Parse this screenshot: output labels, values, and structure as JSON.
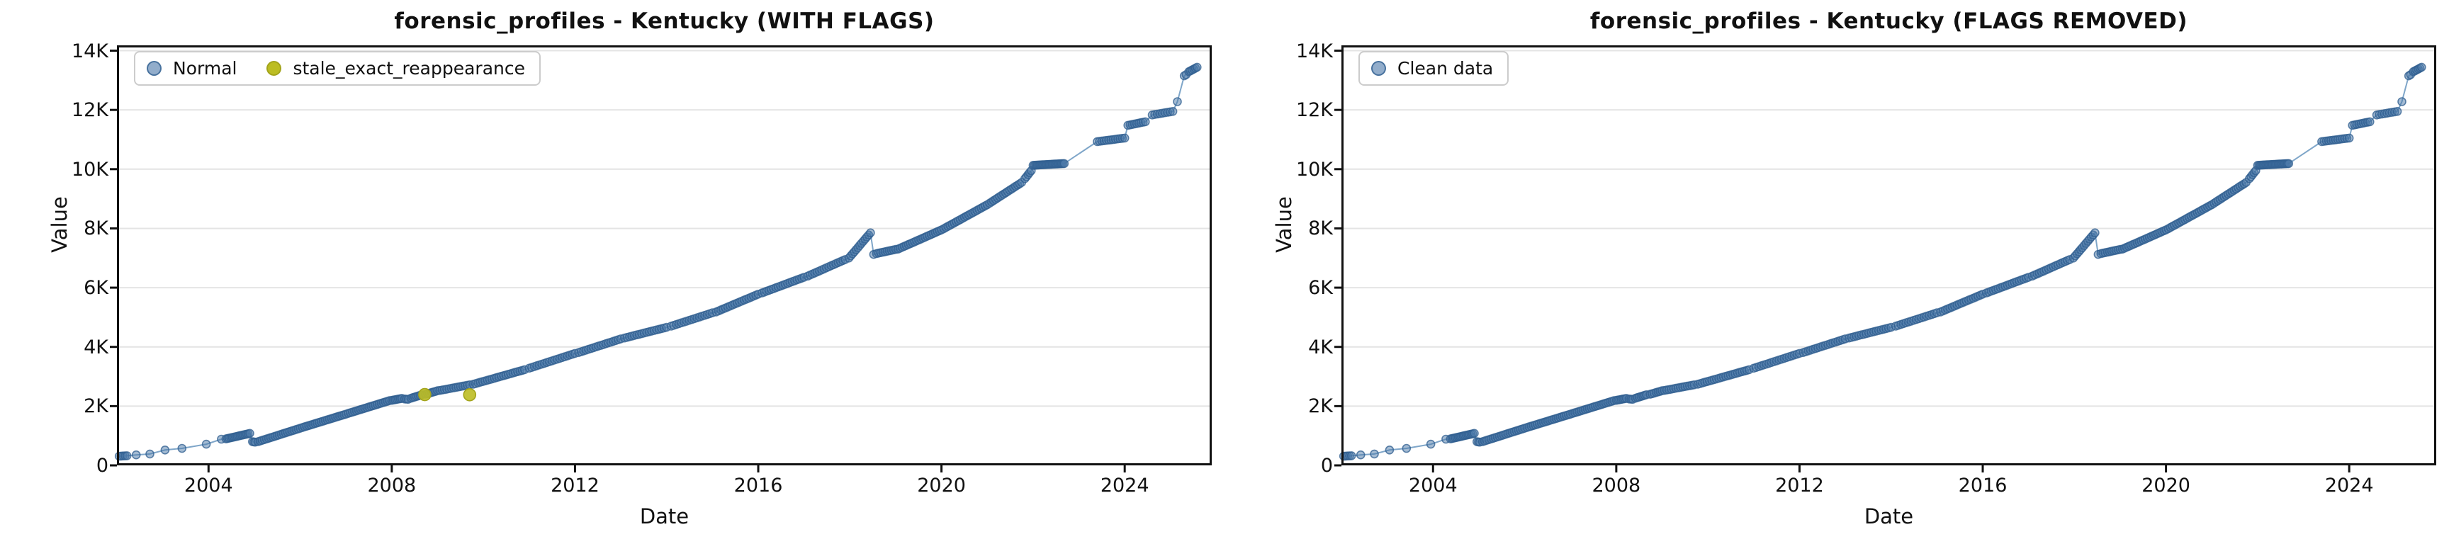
{
  "figure": {
    "background": "#ffffff",
    "panels": 2
  },
  "colors": {
    "normal_fill": "#4a77a8",
    "normal_edge": "#2f5d8f",
    "trend_line": "#7fa6c9",
    "flag_fill": "#bcbd22",
    "flag_edge": "#a3a41b",
    "grid": "#e4e4e4",
    "spine": "#111111",
    "text": "#111111",
    "legend_border": "#cccccc"
  },
  "chart_data": [
    {
      "type": "scatter-line",
      "title": "forensic_profiles - Kentucky (WITH FLAGS)",
      "xlabel": "Date",
      "ylabel": "Value",
      "legend_location": "upper left",
      "grid": "horizontal only",
      "axes": {
        "xlim": [
          2002.0,
          2025.9
        ],
        "ylim": [
          0,
          14180
        ],
        "xticks": [
          {
            "v": 2004,
            "label": "2004"
          },
          {
            "v": 2008,
            "label": "2008"
          },
          {
            "v": 2012,
            "label": "2012"
          },
          {
            "v": 2016,
            "label": "2016"
          },
          {
            "v": 2020,
            "label": "2020"
          },
          {
            "v": 2024,
            "label": "2024"
          }
        ],
        "yticks": [
          {
            "v": 0,
            "label": "0"
          },
          {
            "v": 2000,
            "label": "2K"
          },
          {
            "v": 4000,
            "label": "4K"
          },
          {
            "v": 6000,
            "label": "6K"
          },
          {
            "v": 8000,
            "label": "8K"
          },
          {
            "v": 10000,
            "label": "10K"
          },
          {
            "v": 12000,
            "label": "12K"
          },
          {
            "v": 14000,
            "label": "14K"
          }
        ]
      },
      "series": [
        {
          "name": "Normal",
          "marker_radius": 5.5,
          "note_segments_format": "[x_start_year, y_start, x_end_year, y_end, x_step_years]; step 0 = single point; line connects all points in order",
          "segments": [
            [
              2002.05,
              310,
              2002.22,
              325,
              0.04
            ],
            [
              2002.42,
              355,
              2002.42,
              355,
              0
            ],
            [
              2002.72,
              385,
              2002.72,
              385,
              0
            ],
            [
              2003.05,
              520,
              2003.05,
              520,
              0
            ],
            [
              2003.42,
              575,
              2003.42,
              575,
              0
            ],
            [
              2003.95,
              715,
              2003.95,
              715,
              0
            ],
            [
              2004.28,
              885,
              2004.28,
              885,
              0
            ],
            [
              2004.38,
              895,
              2004.9,
              1080,
              0.035
            ],
            [
              2004.96,
              800,
              2005.02,
              785,
              0.03
            ],
            [
              2005.08,
              800,
              2006.0,
              1255,
              0.045
            ],
            [
              2006.05,
              1280,
              2007.0,
              1730,
              0.045
            ],
            [
              2007.05,
              1755,
              2007.95,
              2185,
              0.045
            ],
            [
              2008.0,
              2195,
              2008.22,
              2262,
              0.04
            ],
            [
              2008.28,
              2240,
              2008.36,
              2232,
              0.04
            ],
            [
              2008.42,
              2268,
              2008.66,
              2385,
              0.04
            ],
            [
              2008.74,
              2400,
              2009.0,
              2520,
              0.045
            ],
            [
              2009.05,
              2530,
              2009.7,
              2720,
              0.05
            ],
            [
              2009.78,
              2740,
              2010.9,
              3230,
              0.05
            ],
            [
              2011.0,
              3280,
              2012.0,
              3780,
              0.055
            ],
            [
              2012.08,
              3810,
              2013.0,
              4270,
              0.055
            ],
            [
              2013.08,
              4300,
              2014.0,
              4660,
              0.055
            ],
            [
              2014.1,
              4700,
              2015.0,
              5150,
              0.055
            ],
            [
              2015.08,
              5180,
              2016.0,
              5780,
              0.05
            ],
            [
              2016.08,
              5820,
              2017.0,
              6350,
              0.05
            ],
            [
              2017.08,
              6390,
              2017.9,
              6950,
              0.05
            ],
            [
              2017.98,
              7000,
              2018.45,
              7850,
              0.04
            ],
            [
              2018.52,
              7120,
              2018.52,
              7120,
              0
            ],
            [
              2018.58,
              7150,
              2019.0,
              7290,
              0.045
            ],
            [
              2019.05,
              7300,
              2020.0,
              7950,
              0.045
            ],
            [
              2020.05,
              7990,
              2021.0,
              8800,
              0.045
            ],
            [
              2021.05,
              8850,
              2021.75,
              9550,
              0.045
            ],
            [
              2021.82,
              9680,
              2021.96,
              9950,
              0.035
            ],
            [
              2022.0,
              10130,
              2022.68,
              10190,
              0.03
            ],
            [
              2023.4,
              10930,
              2024.0,
              11050,
              0.05
            ],
            [
              2024.07,
              11480,
              2024.45,
              11600,
              0.05
            ],
            [
              2024.6,
              11830,
              2025.05,
              11950,
              0.055
            ],
            [
              2025.15,
              12280,
              2025.15,
              12280,
              0
            ],
            [
              2025.3,
              13150,
              2025.34,
              13190,
              0.04
            ],
            [
              2025.4,
              13290,
              2025.58,
              13440,
              0.035
            ]
          ]
        },
        {
          "name": "stale_exact_reappearance",
          "marker_radius": 8.5,
          "points": [
            [
              2008.72,
              2390
            ],
            [
              2009.7,
              2385
            ]
          ]
        }
      ]
    },
    {
      "type": "scatter-line",
      "title": "forensic_profiles - Kentucky (FLAGS REMOVED)",
      "xlabel": "Date",
      "ylabel": "Value",
      "legend_location": "upper left",
      "grid": "horizontal only",
      "axes": {
        "xlim": [
          2002.0,
          2025.9
        ],
        "ylim": [
          0,
          14180
        ],
        "xticks": [
          {
            "v": 2004,
            "label": "2004"
          },
          {
            "v": 2008,
            "label": "2008"
          },
          {
            "v": 2012,
            "label": "2012"
          },
          {
            "v": 2016,
            "label": "2016"
          },
          {
            "v": 2020,
            "label": "2020"
          },
          {
            "v": 2024,
            "label": "2024"
          }
        ],
        "yticks": [
          {
            "v": 0,
            "label": "0"
          },
          {
            "v": 2000,
            "label": "2K"
          },
          {
            "v": 4000,
            "label": "4K"
          },
          {
            "v": 6000,
            "label": "6K"
          },
          {
            "v": 8000,
            "label": "8K"
          },
          {
            "v": 10000,
            "label": "10K"
          },
          {
            "v": 12000,
            "label": "12K"
          },
          {
            "v": 14000,
            "label": "14K"
          }
        ]
      },
      "series": [
        {
          "name": "Clean data",
          "marker_radius": 5.5,
          "note_segments_format": "[x_start_year, y_start, x_end_year, y_end, x_step_years]; step 0 = single point; line connects all points in order",
          "segments": [
            [
              2002.05,
              310,
              2002.22,
              325,
              0.04
            ],
            [
              2002.42,
              355,
              2002.42,
              355,
              0
            ],
            [
              2002.72,
              385,
              2002.72,
              385,
              0
            ],
            [
              2003.05,
              520,
              2003.05,
              520,
              0
            ],
            [
              2003.42,
              575,
              2003.42,
              575,
              0
            ],
            [
              2003.95,
              715,
              2003.95,
              715,
              0
            ],
            [
              2004.28,
              885,
              2004.28,
              885,
              0
            ],
            [
              2004.38,
              895,
              2004.9,
              1080,
              0.035
            ],
            [
              2004.96,
              800,
              2005.02,
              785,
              0.03
            ],
            [
              2005.08,
              800,
              2006.0,
              1255,
              0.045
            ],
            [
              2006.05,
              1280,
              2007.0,
              1730,
              0.045
            ],
            [
              2007.05,
              1755,
              2007.95,
              2185,
              0.045
            ],
            [
              2008.0,
              2195,
              2008.22,
              2262,
              0.04
            ],
            [
              2008.28,
              2240,
              2008.36,
              2232,
              0.04
            ],
            [
              2008.42,
              2268,
              2008.66,
              2385,
              0.04
            ],
            [
              2008.74,
              2400,
              2009.0,
              2520,
              0.045
            ],
            [
              2009.05,
              2530,
              2009.7,
              2720,
              0.05
            ],
            [
              2009.78,
              2740,
              2010.9,
              3230,
              0.05
            ],
            [
              2011.0,
              3280,
              2012.0,
              3780,
              0.055
            ],
            [
              2012.08,
              3810,
              2013.0,
              4270,
              0.055
            ],
            [
              2013.08,
              4300,
              2014.0,
              4660,
              0.055
            ],
            [
              2014.1,
              4700,
              2015.0,
              5150,
              0.055
            ],
            [
              2015.08,
              5180,
              2016.0,
              5780,
              0.05
            ],
            [
              2016.08,
              5820,
              2017.0,
              6350,
              0.05
            ],
            [
              2017.08,
              6390,
              2017.9,
              6950,
              0.05
            ],
            [
              2017.98,
              7000,
              2018.45,
              7850,
              0.04
            ],
            [
              2018.52,
              7120,
              2018.52,
              7120,
              0
            ],
            [
              2018.58,
              7150,
              2019.0,
              7290,
              0.045
            ],
            [
              2019.05,
              7300,
              2020.0,
              7950,
              0.045
            ],
            [
              2020.05,
              7990,
              2021.0,
              8800,
              0.045
            ],
            [
              2021.05,
              8850,
              2021.75,
              9550,
              0.045
            ],
            [
              2021.82,
              9680,
              2021.96,
              9950,
              0.035
            ],
            [
              2022.0,
              10130,
              2022.68,
              10190,
              0.03
            ],
            [
              2023.4,
              10930,
              2024.0,
              11050,
              0.05
            ],
            [
              2024.07,
              11480,
              2024.45,
              11600,
              0.05
            ],
            [
              2024.6,
              11830,
              2025.05,
              11950,
              0.055
            ],
            [
              2025.15,
              12280,
              2025.15,
              12280,
              0
            ],
            [
              2025.3,
              13150,
              2025.34,
              13190,
              0.04
            ],
            [
              2025.4,
              13290,
              2025.58,
              13440,
              0.035
            ]
          ]
        }
      ]
    }
  ]
}
